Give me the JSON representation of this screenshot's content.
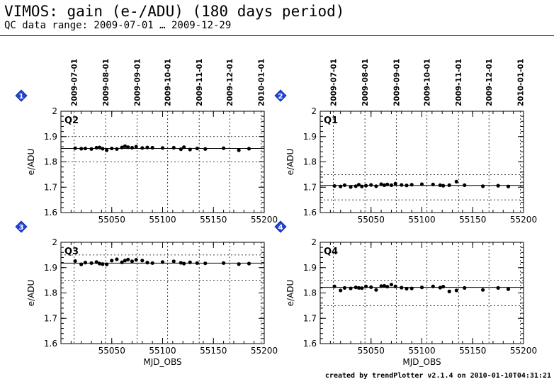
{
  "header": {
    "title": "VIMOS: gain (e-/ADU) (180 days period)",
    "subtitle": "QC data range: 2009-07-01 … 2009-12-29"
  },
  "footer": {
    "text": "created by trendPlotter v2.1.4 on 2010-01-10T04:31:21"
  },
  "colors": {
    "badge": "#2244dd",
    "line": "#000000"
  },
  "chart_data": [
    {
      "type": "scatter",
      "panel_number": "1",
      "label": "Q2",
      "xlabel": "",
      "ylabel": "e/ADU",
      "xlim": [
        55000,
        55200
      ],
      "ylim": [
        1.6,
        2.0
      ],
      "yticks": [
        1.6,
        1.7,
        1.8,
        1.9,
        2
      ],
      "xticks": [
        55050,
        55100,
        55150,
        55200
      ],
      "reference": 1.853,
      "limits": [
        1.8,
        1.9
      ],
      "x": [
        55014,
        55020,
        55024,
        55030,
        55035,
        55038,
        55041,
        55045,
        55050,
        55055,
        55060,
        55063,
        55066,
        55070,
        55074,
        55080,
        55085,
        55090,
        55100,
        55111,
        55118,
        55121,
        55127,
        55134,
        55142,
        55160,
        55175,
        55185
      ],
      "y": [
        1.854,
        1.852,
        1.853,
        1.851,
        1.856,
        1.857,
        1.852,
        1.846,
        1.853,
        1.851,
        1.857,
        1.862,
        1.858,
        1.856,
        1.86,
        1.855,
        1.857,
        1.856,
        1.855,
        1.856,
        1.85,
        1.858,
        1.849,
        1.853,
        1.851,
        1.854,
        1.846,
        1.852
      ]
    },
    {
      "type": "scatter",
      "panel_number": "2",
      "label": "Q1",
      "xlabel": "",
      "ylabel": "e/ADU",
      "xlim": [
        55000,
        55200
      ],
      "ylim": [
        1.6,
        2.0
      ],
      "yticks": [
        1.6,
        1.7,
        1.8,
        1.9,
        2
      ],
      "xticks": [
        55050,
        55100,
        55150,
        55200
      ],
      "reference": 1.707,
      "limits": [
        1.65,
        1.75
      ],
      "x": [
        55014,
        55020,
        55024,
        55030,
        55035,
        55038,
        55041,
        55045,
        55050,
        55055,
        55060,
        55063,
        55066,
        55070,
        55074,
        55080,
        55085,
        55090,
        55100,
        55111,
        55118,
        55121,
        55127,
        55134,
        55142,
        55160,
        55175,
        55185
      ],
      "y": [
        1.705,
        1.703,
        1.708,
        1.701,
        1.704,
        1.71,
        1.703,
        1.706,
        1.709,
        1.704,
        1.712,
        1.708,
        1.711,
        1.708,
        1.714,
        1.709,
        1.707,
        1.71,
        1.712,
        1.711,
        1.708,
        1.706,
        1.708,
        1.722,
        1.708,
        1.704,
        1.706,
        1.703
      ]
    },
    {
      "type": "scatter",
      "panel_number": "3",
      "label": "Q3",
      "xlabel": "MJD_OBS",
      "ylabel": "e/ADU",
      "xlim": [
        55000,
        55200
      ],
      "ylim": [
        1.6,
        2.0
      ],
      "yticks": [
        1.6,
        1.7,
        1.8,
        1.9,
        2
      ],
      "xticks": [
        55050,
        55100,
        55150,
        55200
      ],
      "reference": 1.918,
      "limits": [
        1.85,
        1.95
      ],
      "x": [
        55014,
        55020,
        55024,
        55030,
        55035,
        55038,
        55041,
        55045,
        55050,
        55055,
        55060,
        55063,
        55066,
        55070,
        55074,
        55080,
        55085,
        55090,
        55100,
        55111,
        55118,
        55121,
        55127,
        55134,
        55142,
        55160,
        55175,
        55185
      ],
      "y": [
        1.926,
        1.913,
        1.92,
        1.918,
        1.922,
        1.916,
        1.914,
        1.913,
        1.928,
        1.933,
        1.921,
        1.928,
        1.932,
        1.925,
        1.931,
        1.928,
        1.92,
        1.918,
        1.922,
        1.925,
        1.919,
        1.916,
        1.921,
        1.918,
        1.917,
        1.918,
        1.914,
        1.916
      ]
    },
    {
      "type": "scatter",
      "panel_number": "4",
      "label": "Q4",
      "xlabel": "MJD_OBS",
      "ylabel": "e/ADU",
      "xlim": [
        55000,
        55200
      ],
      "ylim": [
        1.6,
        2.0
      ],
      "yticks": [
        1.6,
        1.7,
        1.8,
        1.9,
        2
      ],
      "xticks": [
        55050,
        55100,
        55150,
        55200
      ],
      "reference": 1.822,
      "limits": [
        1.75,
        1.85
      ],
      "x": [
        55014,
        55020,
        55024,
        55030,
        55035,
        55038,
        55041,
        55045,
        55050,
        55055,
        55060,
        55063,
        55066,
        55070,
        55074,
        55080,
        55085,
        55090,
        55100,
        55111,
        55118,
        55121,
        55127,
        55134,
        55142,
        55160,
        55175,
        55185
      ],
      "y": [
        1.826,
        1.81,
        1.82,
        1.818,
        1.822,
        1.82,
        1.819,
        1.826,
        1.823,
        1.812,
        1.827,
        1.828,
        1.825,
        1.833,
        1.826,
        1.821,
        1.817,
        1.818,
        1.822,
        1.826,
        1.821,
        1.825,
        1.806,
        1.81,
        1.82,
        1.812,
        1.82,
        1.815
      ]
    }
  ],
  "date_axis": {
    "labels": [
      "2009-07-01",
      "2009-08-01",
      "2009-09-01",
      "2009-10-01",
      "2009-11-01",
      "2009-12-01",
      "2010-01-01"
    ],
    "mjd": [
      55013,
      55044,
      55075,
      55105,
      55136,
      55166,
      55197
    ]
  }
}
